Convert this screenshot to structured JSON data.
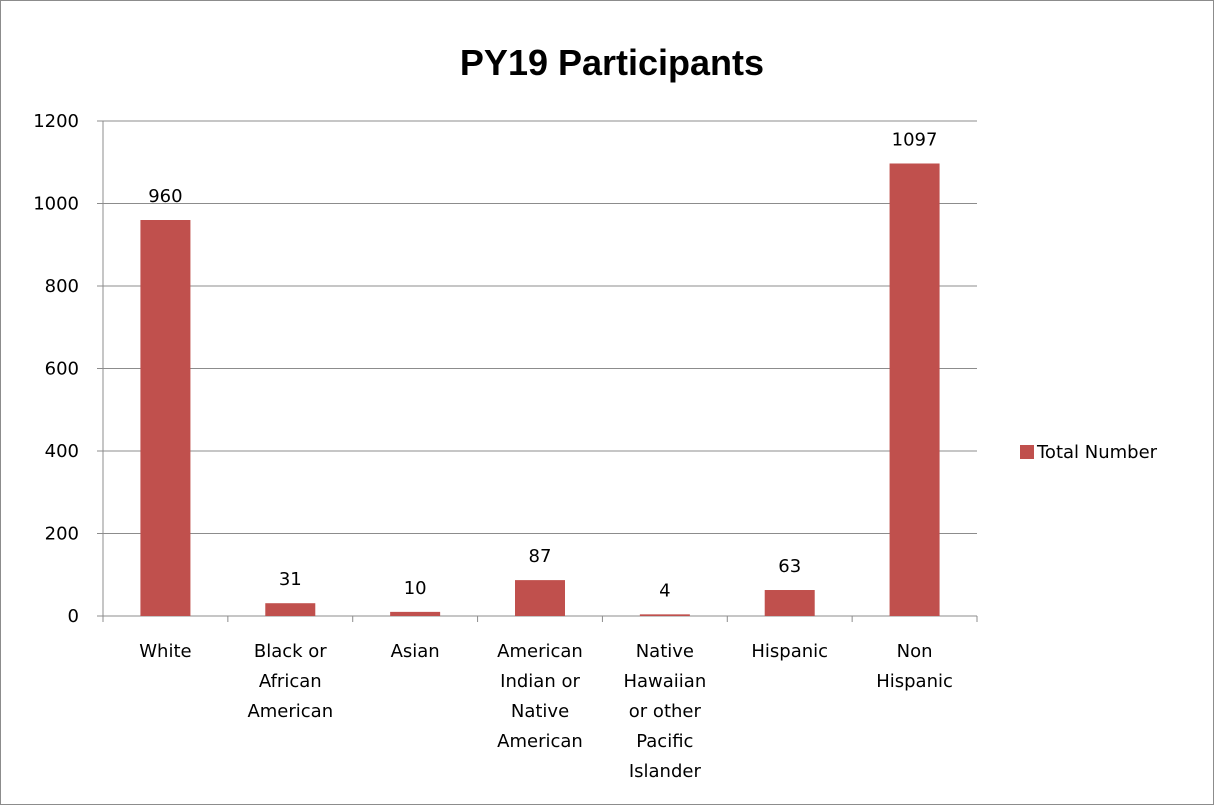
{
  "chart_data": {
    "type": "bar",
    "title": "PY19 Participants",
    "xlabel": "",
    "ylabel": "",
    "categories": [
      [
        "White"
      ],
      [
        "Black or",
        "African",
        "American"
      ],
      [
        "Asian"
      ],
      [
        "American",
        "Indian or",
        "Native",
        "American"
      ],
      [
        "Native",
        "Hawaiian",
        "or other",
        "Pacific",
        "Islander"
      ],
      [
        "Hispanic"
      ],
      [
        "Non",
        "Hispanic"
      ]
    ],
    "series": [
      {
        "name": "Total Number",
        "color": "#c0504d",
        "values": [
          960,
          31,
          10,
          87,
          4,
          63,
          1097
        ]
      }
    ],
    "ylim": [
      0,
      1200
    ],
    "yticks": [
      "0",
      "200",
      "400",
      "600",
      "800",
      "1000",
      "1200"
    ],
    "grid": true,
    "legend_position": "right"
  }
}
